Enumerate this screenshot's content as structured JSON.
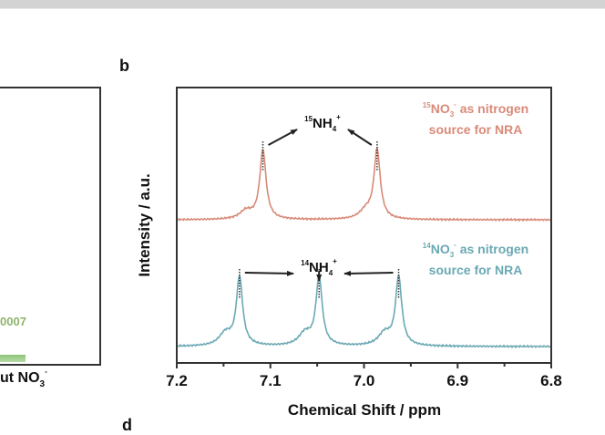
{
  "page": {
    "panels": {
      "b": "b",
      "d": "d"
    },
    "left_panel": {
      "value_label": "0007",
      "xlabel_prefix": "ut NO",
      "xlabel_sub": "3",
      "xlabel_sup": "-"
    }
  },
  "chart_data": {
    "type": "line",
    "panel": "b",
    "xlabel": "Chemical Shift / ppm",
    "ylabel": "Intensity / a.u.",
    "xlim": [
      7.2,
      6.8
    ],
    "x_reversed": true,
    "xticks": [
      "7.2",
      "7.1",
      "7.0",
      "6.9",
      "6.8"
    ],
    "xtick_values": [
      7.2,
      7.1,
      7.0,
      6.9,
      6.8
    ],
    "minor_ticks": [
      7.15,
      7.05,
      6.95,
      6.85
    ],
    "grid": false,
    "series": [
      {
        "name": "15NO3- as nitrogen source for NRA",
        "color": "#d98a78",
        "offset": 1.0,
        "peaks": [
          {
            "x": 7.108,
            "height": 1.0,
            "width": 0.004
          },
          {
            "x": 6.986,
            "height": 1.0,
            "width": 0.004
          },
          {
            "x": 7.126,
            "height": 0.12,
            "width": 0.008
          },
          {
            "x": 6.998,
            "height": 0.12,
            "width": 0.008
          }
        ],
        "label": {
          "iso": "15",
          "species": "NO",
          "sub": "3",
          "sup": "-",
          "line1_rest": " as nitrogen",
          "line2": "source for NRA"
        },
        "annotation": {
          "iso": "15",
          "text": "NH",
          "sub": "4",
          "sup": "+"
        }
      },
      {
        "name": "14NO3- as nitrogen source for NRA",
        "color": "#6aa9b3",
        "offset": 0.0,
        "peaks": [
          {
            "x": 7.133,
            "height": 0.55,
            "width": 0.004
          },
          {
            "x": 7.048,
            "height": 0.55,
            "width": 0.004
          },
          {
            "x": 6.963,
            "height": 0.55,
            "width": 0.004
          },
          {
            "x": 7.148,
            "height": 0.1,
            "width": 0.008
          },
          {
            "x": 7.063,
            "height": 0.1,
            "width": 0.008
          },
          {
            "x": 6.978,
            "height": 0.1,
            "width": 0.008
          }
        ],
        "label": {
          "iso": "14",
          "species": "NO",
          "sub": "3",
          "sup": "-",
          "line1_rest": " as nitrogen",
          "line2": "source for NRA"
        },
        "annotation": {
          "iso": "14",
          "text": "NH",
          "sub": "4",
          "sup": "+"
        }
      }
    ]
  }
}
